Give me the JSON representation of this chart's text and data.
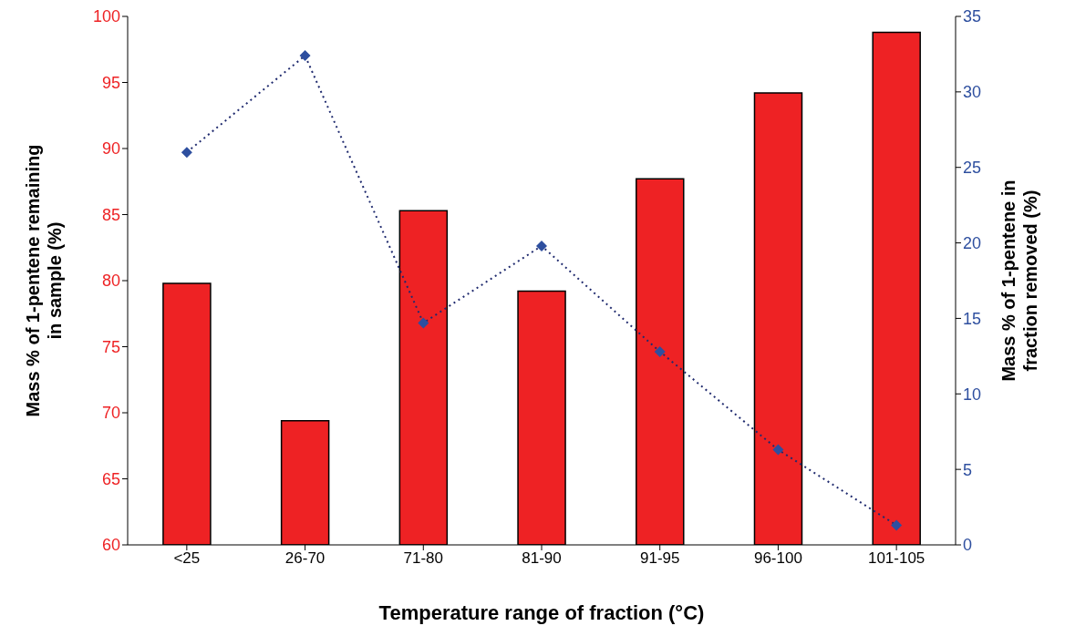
{
  "chart_data": {
    "type": "bar",
    "xlabel": "Temperature range of fraction (°C)",
    "ylabel": "Mass % of 1-pentene remaining in sample (%)",
    "y2label": "Mass % of 1-pentene in fraction removed (%)",
    "categories": [
      "<25",
      "26-70",
      "71-80",
      "81-90",
      "91-95",
      "96-100",
      "101-105"
    ],
    "series": [
      {
        "color": "#ee2224",
        "values": [
          79.8,
          69.4,
          85.3,
          79.2,
          87.7,
          94.2,
          98.8
        ]
      },
      {
        "type": "line",
        "axis": "y2",
        "color": "#2e4f9f",
        "marker": "diamond",
        "line_style": "dotted",
        "values": [
          26.0,
          32.4,
          14.7,
          19.8,
          12.8,
          6.3,
          1.3
        ]
      }
    ],
    "ylim": [
      60,
      100
    ],
    "yticks": [
      60,
      65,
      70,
      75,
      80,
      85,
      90,
      95,
      100
    ],
    "y2lim": [
      0,
      35
    ],
    "y2ticks": [
      0,
      5,
      10,
      15,
      20,
      25,
      30,
      35
    ],
    "grid": false,
    "legend": false
  }
}
